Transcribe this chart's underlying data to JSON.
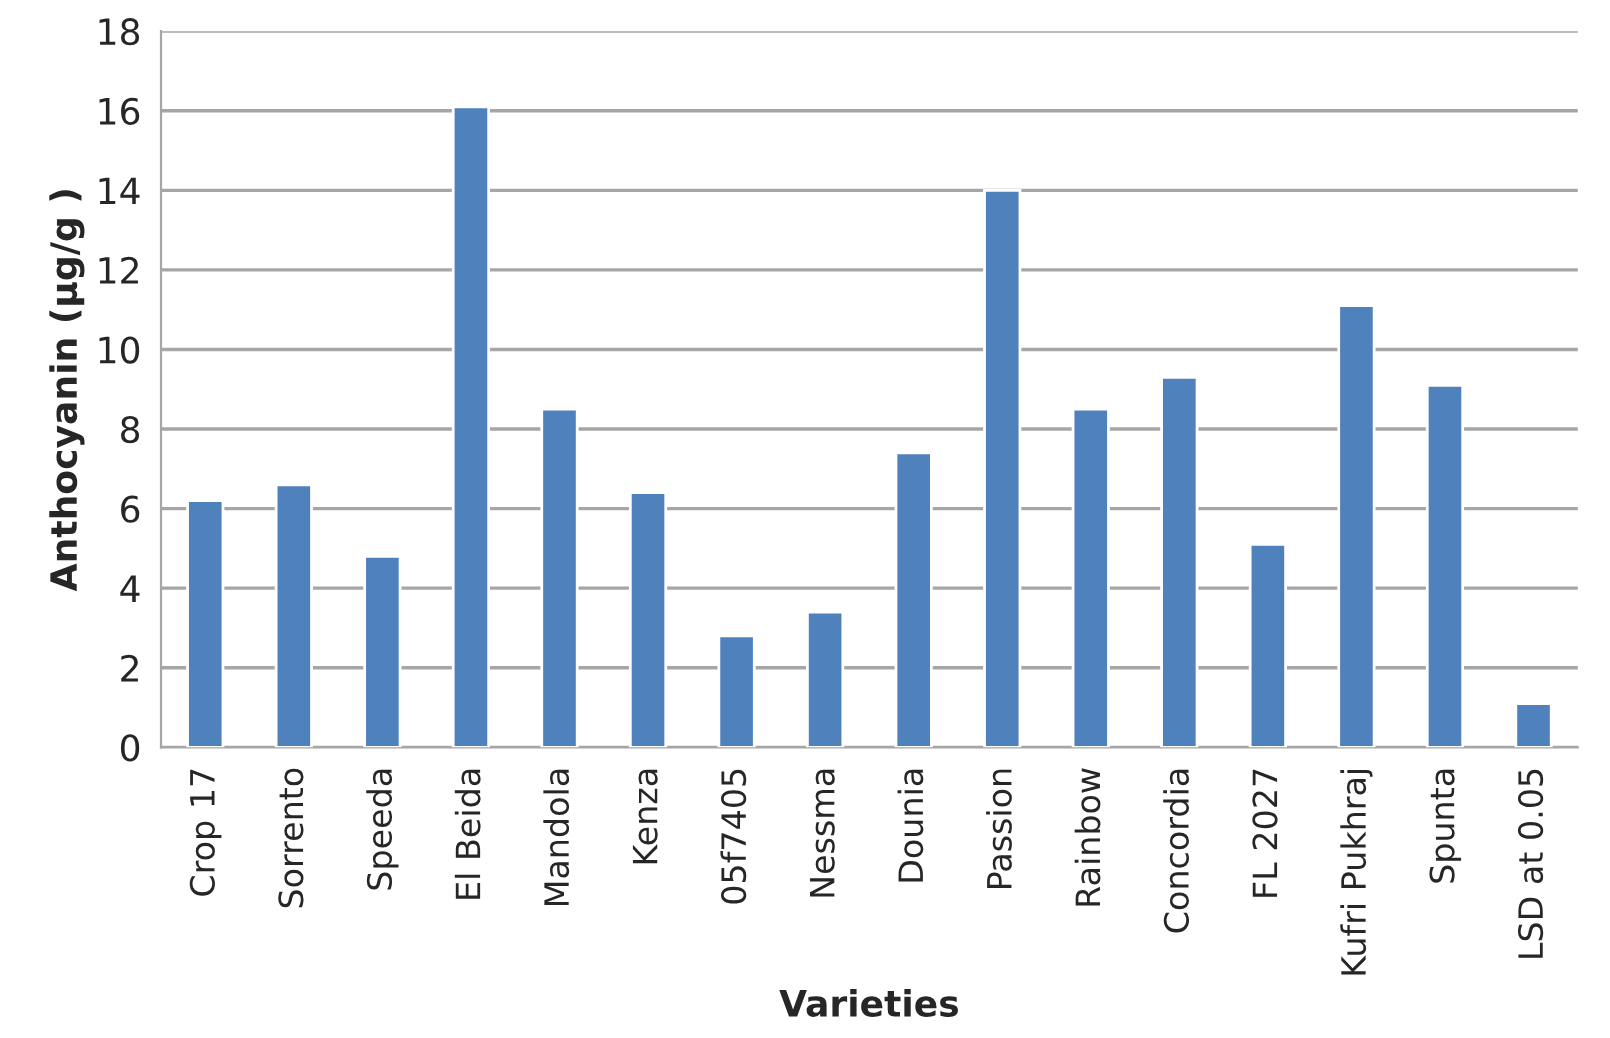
{
  "chart_data": {
    "type": "bar",
    "xlabel": "Varieties",
    "ylabel": "Anthocyanin (µg/g )",
    "categories": [
      "Crop 17",
      "Sorrento",
      "Speeda",
      "El Beida",
      "Mandola",
      "Kenza",
      "05f7405",
      "Nessma",
      "Dounia",
      "Passion",
      "Rainbow",
      "Concordia",
      "FL 2027",
      "Kufri Pukhraj",
      "Spunta",
      "LSD at 0.05"
    ],
    "values": [
      6.2,
      6.6,
      4.8,
      16.1,
      8.5,
      6.4,
      2.8,
      3.4,
      7.4,
      14.0,
      8.5,
      9.3,
      5.1,
      11.1,
      9.1,
      1.1
    ],
    "color": "#4f81bd",
    "ylim": [
      0,
      18
    ],
    "yticks": [
      0,
      2,
      4,
      6,
      8,
      10,
      12,
      14,
      16,
      18
    ],
    "grid": "y"
  }
}
